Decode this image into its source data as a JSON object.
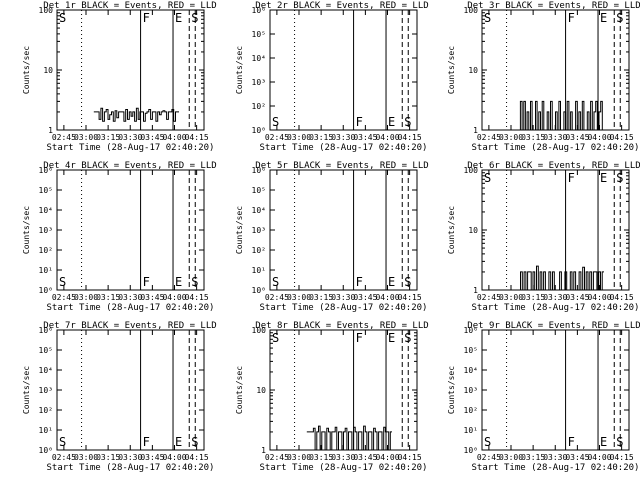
{
  "chart_data": [
    {
      "type": "line",
      "title": "Det 1r BLACK = Events, RED = LLD",
      "xlabel": "Start Time (28-Aug-17 02:40:20)",
      "ylabel": "Counts/sec",
      "yscale": "log",
      "ylim": [
        1,
        100
      ],
      "yticks": [
        "1",
        "10",
        "100"
      ],
      "x_ticks": [
        "02:45",
        "03:00",
        "03:15",
        "03:30",
        "03:45",
        "04:00",
        "04:15"
      ],
      "markers": [
        {
          "label": "S",
          "x": "02:40"
        },
        {
          "label": "F",
          "x": "03:37"
        },
        {
          "label": "E",
          "x": "03:59"
        },
        {
          "label": "S",
          "x": "04:10"
        }
      ],
      "series": [
        {
          "values": [
            2,
            2,
            2,
            1.5,
            2.3,
            1.4,
            2,
            2.2,
            1.5,
            1.8,
            2,
            1.4,
            2.1,
            1.6,
            2,
            2,
            2,
            1.4,
            2.2,
            1.5,
            2,
            1.7,
            2,
            1.4,
            2.3,
            1.5,
            2,
            2,
            1.4,
            1.9,
            2,
            2.2,
            1.5,
            2,
            2,
            1.4,
            2,
            1.8,
            2,
            2.1,
            2,
            1.5,
            2,
            2,
            2.2,
            1.4,
            2,
            2
          ]
        }
      ]
    },
    {
      "type": "line",
      "title": "Det 2r BLACK = Events, RED = LLD",
      "xlabel": "Start Time (28-Aug-17 02:40:20)",
      "ylabel": "Counts/sec",
      "yscale": "log",
      "ylim": [
        1,
        1000000
      ],
      "yticks": [
        "10⁰",
        "10²",
        "10³",
        "10⁴",
        "10⁵",
        "10⁶"
      ],
      "x_ticks": [
        "02:45",
        "03:00",
        "03:15",
        "03:30",
        "03:45",
        "04:00",
        "04:15"
      ],
      "markers": [
        {
          "label": "S",
          "x": "02:40"
        },
        {
          "label": "F",
          "x": "03:37"
        },
        {
          "label": "E",
          "x": "03:59"
        },
        {
          "label": "S",
          "x": "04:10"
        }
      ],
      "series": []
    },
    {
      "type": "line",
      "title": "Det 3r BLACK = Events, RED = LLD",
      "xlabel": "Start Time (28-Aug-17 02:40:20)",
      "ylabel": "Counts/sec",
      "yscale": "log",
      "ylim": [
        1,
        100
      ],
      "yticks": [
        "1",
        "10",
        "100"
      ],
      "x_ticks": [
        "02:45",
        "03:00",
        "03:15",
        "03:30",
        "03:45",
        "04:00",
        "04:15"
      ],
      "markers": [
        {
          "label": "S",
          "x": "02:40"
        },
        {
          "label": "F",
          "x": "03:37"
        },
        {
          "label": "E",
          "x": "03:59"
        },
        {
          "label": "S",
          "x": "04:10"
        }
      ],
      "series": [
        {
          "values": [
            1,
            3,
            1,
            3,
            1,
            2,
            1,
            3,
            1,
            1,
            3,
            1,
            2,
            1,
            3,
            1,
            1,
            2,
            1,
            3,
            1,
            1,
            2,
            1,
            3,
            1,
            1,
            2,
            1,
            3,
            1,
            2,
            1,
            1,
            3,
            1,
            2,
            1,
            3,
            1,
            1,
            2,
            1,
            3,
            1,
            2,
            3,
            1,
            2,
            3,
            1
          ]
        }
      ]
    },
    {
      "type": "line",
      "title": "Det 4r BLACK = Events, RED = LLD",
      "xlabel": "Start Time (28-Aug-17 02:40:20)",
      "ylabel": "Counts/sec",
      "yscale": "log",
      "ylim": [
        1,
        1000000
      ],
      "yticks": [
        "10⁰",
        "10¹",
        "10²",
        "10³",
        "10⁴",
        "10⁵",
        "10⁶"
      ],
      "x_ticks": [
        "02:45",
        "03:00",
        "03:15",
        "03:30",
        "03:45",
        "04:00",
        "04:15"
      ],
      "markers": [
        {
          "label": "S",
          "x": "02:40"
        },
        {
          "label": "F",
          "x": "03:37"
        },
        {
          "label": "E",
          "x": "03:59"
        },
        {
          "label": "S",
          "x": "04:10"
        }
      ],
      "series": []
    },
    {
      "type": "line",
      "title": "Det 5r BLACK = Events, RED = LLD",
      "xlabel": "Start Time (28-Aug-17 02:40:20)",
      "ylabel": "Counts/sec",
      "yscale": "log",
      "ylim": [
        1,
        1000000
      ],
      "yticks": [
        "10⁰",
        "10¹",
        "10²",
        "10³",
        "10⁴",
        "10⁵",
        "10⁶"
      ],
      "x_ticks": [
        "02:45",
        "03:00",
        "03:15",
        "03:30",
        "03:45",
        "04:00",
        "04:15"
      ],
      "markers": [
        {
          "label": "S",
          "x": "02:40"
        },
        {
          "label": "F",
          "x": "03:37"
        },
        {
          "label": "E",
          "x": "03:59"
        },
        {
          "label": "S",
          "x": "04:10"
        }
      ],
      "series": []
    },
    {
      "type": "line",
      "title": "Det 6r BLACK = Events, RED = LLD",
      "xlabel": "Start Time (28-Aug-17 02:40:20)",
      "ylabel": "Counts/sec",
      "yscale": "log",
      "ylim": [
        1,
        100
      ],
      "yticks": [
        "1",
        "10",
        "100"
      ],
      "x_ticks": [
        "02:45",
        "03:00",
        "03:15",
        "03:30",
        "03:45",
        "04:00",
        "04:15"
      ],
      "markers": [
        {
          "label": "S",
          "x": "02:40"
        },
        {
          "label": "F",
          "x": "03:37"
        },
        {
          "label": "E",
          "x": "03:59"
        },
        {
          "label": "S",
          "x": "04:10"
        }
      ],
      "series": [
        {
          "values": [
            1,
            2,
            1,
            2,
            1,
            2,
            2,
            1,
            2,
            1,
            2.5,
            1,
            2,
            1,
            2,
            1,
            1,
            2,
            1,
            2,
            1,
            1,
            1,
            2,
            1,
            1,
            2,
            1,
            1,
            2,
            1,
            2,
            1,
            1,
            2,
            1,
            2.4,
            1,
            2,
            1,
            2,
            1,
            2,
            2,
            1,
            2,
            1,
            2
          ]
        }
      ]
    },
    {
      "type": "line",
      "title": "Det 7r BLACK = Events, RED = LLD",
      "xlabel": "Start Time (28-Aug-17 02:40:20)",
      "ylabel": "Counts/sec",
      "yscale": "log",
      "ylim": [
        1,
        1000000
      ],
      "yticks": [
        "10⁰",
        "10¹",
        "10²",
        "10³",
        "10⁴",
        "10⁵",
        "10⁶"
      ],
      "x_ticks": [
        "02:45",
        "03:00",
        "03:15",
        "03:30",
        "03:45",
        "04:00",
        "04:15"
      ],
      "markers": [
        {
          "label": "S",
          "x": "02:40"
        },
        {
          "label": "F",
          "x": "03:37"
        },
        {
          "label": "E",
          "x": "03:59"
        },
        {
          "label": "S",
          "x": "04:10"
        }
      ],
      "series": []
    },
    {
      "type": "line",
      "title": "Det 8r BLACK = Events, RED = LLD",
      "xlabel": "Start Time (28-Aug-17 02:40:20)",
      "ylabel": "Counts/sec",
      "yscale": "log",
      "ylim": [
        1,
        100
      ],
      "yticks": [
        "1",
        "10",
        "100"
      ],
      "x_ticks": [
        "02:45",
        "03:00",
        "03:15",
        "03:30",
        "03:45",
        "04:00",
        "04:15"
      ],
      "markers": [
        {
          "label": "S",
          "x": "02:40"
        },
        {
          "label": "F",
          "x": "03:37"
        },
        {
          "label": "E",
          "x": "03:59"
        },
        {
          "label": "S",
          "x": "04:10"
        }
      ],
      "series": [
        {
          "values": [
            2,
            2,
            2,
            2,
            2.3,
            1,
            2,
            2.5,
            1,
            2,
            2,
            1,
            2.3,
            2,
            1,
            2,
            2,
            2.4,
            1,
            2,
            2,
            1,
            2,
            2.3,
            1,
            2,
            2,
            1,
            2.4,
            2,
            1,
            2,
            2,
            1,
            2.5,
            2,
            1,
            2,
            2,
            1,
            2.3,
            2,
            1,
            2,
            2,
            1,
            2.4,
            2,
            2,
            1,
            2
          ]
        }
      ]
    },
    {
      "type": "line",
      "title": "Det 9r BLACK = Events, RED = LLD",
      "xlabel": "Start Time (28-Aug-17 02:40:20)",
      "ylabel": "Counts/sec",
      "yscale": "log",
      "ylim": [
        1,
        1000000
      ],
      "yticks": [
        "10⁰",
        "10¹",
        "10²",
        "10³",
        "10⁴",
        "10⁵",
        "10⁶"
      ],
      "x_ticks": [
        "02:45",
        "03:00",
        "03:15",
        "03:30",
        "03:45",
        "04:00",
        "04:15"
      ],
      "markers": [
        {
          "label": "S",
          "x": "02:40"
        },
        {
          "label": "F",
          "x": "03:37"
        },
        {
          "label": "E",
          "x": "03:59"
        },
        {
          "label": "S",
          "x": "04:10"
        }
      ],
      "series": []
    }
  ]
}
